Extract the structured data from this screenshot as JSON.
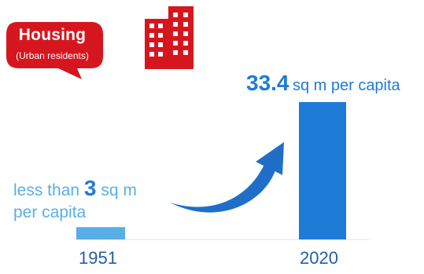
{
  "header": {
    "title": "Housing",
    "subtitle": "(Urban residents)",
    "icon": "building-icon",
    "colors": {
      "badge": "#d6161f",
      "icon": "#d6161f"
    }
  },
  "chart_data": {
    "type": "bar",
    "categories": [
      "1951",
      "2020"
    ],
    "values": [
      3,
      33.4
    ],
    "unit": "sq m per capita",
    "annotations": [
      {
        "category": "1951",
        "prefix": "less than",
        "value": "3",
        "suffix": "sq m",
        "line2": "per capita"
      },
      {
        "category": "2020",
        "value": "33.4",
        "suffix": "sq m per capita"
      }
    ],
    "ylim": [
      0,
      33.4
    ],
    "grid": false,
    "colors": {
      "bar_1951": "#5aaee6",
      "bar_2020": "#1f7bd8",
      "arrow": "#1f6fc9",
      "label": "#1f7bd8"
    }
  }
}
